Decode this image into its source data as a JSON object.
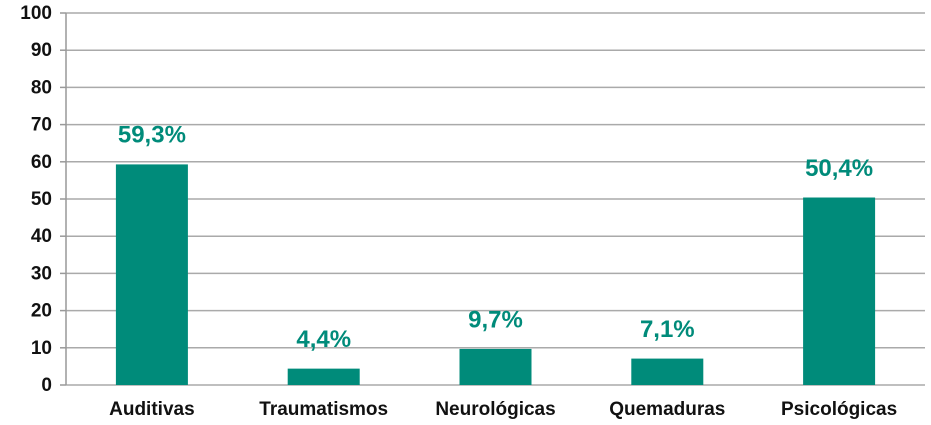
{
  "chart_data": {
    "type": "bar",
    "categories": [
      "Auditivas",
      "Traumatismos",
      "Neurológicas",
      "Quemaduras",
      "Psicológicas"
    ],
    "values": [
      59.3,
      4.4,
      9.7,
      7.1,
      50.4
    ],
    "value_labels": [
      "59,3%",
      "4,4%",
      "9,7%",
      "7,1%",
      "50,4%"
    ],
    "color": "#008b7a",
    "ylim": [
      0,
      100
    ],
    "yticks": [
      0,
      10,
      20,
      30,
      40,
      50,
      60,
      70,
      80,
      90,
      100
    ],
    "grid": true
  }
}
